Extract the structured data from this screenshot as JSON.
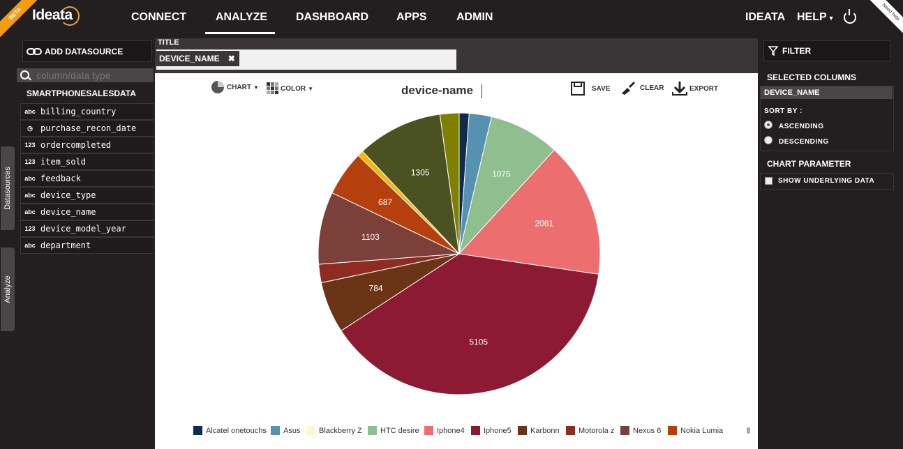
{
  "app": {
    "logo": "Ideata",
    "badge": "BETA",
    "help_corner": "Need help"
  },
  "nav": {
    "items": [
      "CONNECT",
      "ANALYZE",
      "DASHBOARD",
      "APPS",
      "ADMIN"
    ],
    "active": "ANALYZE",
    "user": "IDEATA",
    "help": "HELP"
  },
  "left": {
    "add_datasource": "ADD DATASOURCE",
    "search_placeholder": "column/data type",
    "datasource_name": "SMARTPHONESALESDATA",
    "columns": [
      {
        "icon": "abc",
        "name": "billing_country"
      },
      {
        "icon": "clock",
        "name": "purchase_recon_date"
      },
      {
        "icon": "123",
        "name": "ordercompleted"
      },
      {
        "icon": "123",
        "name": "item_sold"
      },
      {
        "icon": "abc",
        "name": "feedback"
      },
      {
        "icon": "abc",
        "name": "device_type"
      },
      {
        "icon": "abc",
        "name": "device_name"
      },
      {
        "icon": "123",
        "name": "device_model_year"
      },
      {
        "icon": "abc",
        "name": "department"
      }
    ],
    "tabs": [
      "Datasources",
      "Analyze"
    ]
  },
  "center": {
    "title_label": "TITLE",
    "chip": "DEVICE_NAME",
    "toolbar": {
      "chart": "CHART",
      "color": "COLOR",
      "save": "SAVE",
      "clear": "CLEAR",
      "export": "EXPORT"
    }
  },
  "right": {
    "filter": "FILTER",
    "selected_columns": "SELECTED COLUMNS",
    "selected_item": "DEVICE_NAME",
    "sort_by": "SORT BY :",
    "ascending": "ASCENDING",
    "descending": "DESCENDING",
    "sort_selected": "ASCENDING",
    "chart_parameter": "CHART PARAMETER",
    "show_underlying": "SHOW UNDERLYING DATA"
  },
  "chart_data": {
    "type": "pie",
    "title": "device-name",
    "legend_position": "bottom",
    "slices": [
      {
        "label": "Alcatel onetouchs",
        "value": 150,
        "color": "#0d2d4a"
      },
      {
        "label": "Asus",
        "value": 340,
        "color": "#5592b0"
      },
      {
        "label": "Blackberry Z",
        "value": 0,
        "color": "#fff8cc"
      },
      {
        "label": "HTC desire",
        "value": 1075,
        "color": "#8fbf8f"
      },
      {
        "label": "Iphone4",
        "value": 2061,
        "color": "#ed6e6e"
      },
      {
        "label": "Iphone5",
        "value": 5105,
        "color": "#8b1a32"
      },
      {
        "label": "Karbonn",
        "value": 784,
        "color": "#6b3417"
      },
      {
        "label": "Motorola z",
        "value": 280,
        "color": "#8e2c22"
      },
      {
        "label": "Nexus 6",
        "value": 1103,
        "color": "#7b403a"
      },
      {
        "label": "Nokia Lumia",
        "value": 687,
        "color": "#b5400e"
      },
      {
        "label": "",
        "value": 90,
        "color": "#f5b50c"
      },
      {
        "label": "",
        "value": 1305,
        "color": "#4b5221"
      },
      {
        "label": "",
        "value": 290,
        "color": "#7f7f00"
      }
    ],
    "shown_labels": [
      1075,
      2061,
      5105,
      784,
      1103,
      687,
      1305
    ]
  }
}
